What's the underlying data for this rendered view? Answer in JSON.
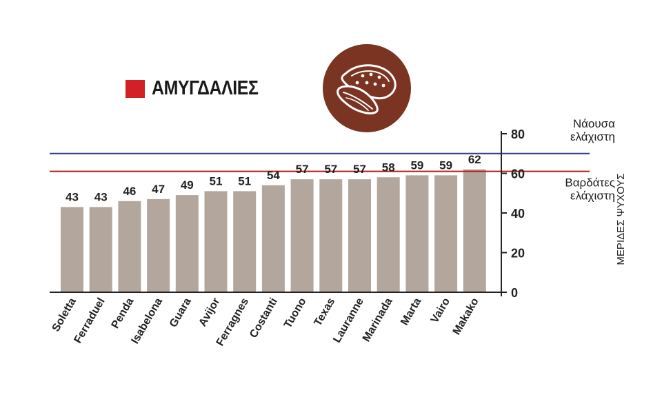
{
  "colors": {
    "bar": "#b3a69c",
    "accent_red": "#d32027",
    "line_blue": "#2e3b8e",
    "line_red": "#b01c1c",
    "icon_bg": "#7a3421",
    "axis": "#222222"
  },
  "header": {
    "title": "ΑΜΥΓΔΑΛΙΕΣ",
    "icon": "almond-icon"
  },
  "chart_data": {
    "type": "bar",
    "title": "ΑΜΥΓΔΑΛΙΕΣ",
    "categories": [
      "Soletta",
      "Ferraduel",
      "Penda",
      "Isabelona",
      "Guara",
      "Avijor",
      "Ferragnes",
      "Costanti",
      "Tuono",
      "Texas",
      "Lauranne",
      "Marinada",
      "Marta",
      "Vairo",
      "Makako"
    ],
    "values": [
      43,
      43,
      46,
      47,
      49,
      51,
      51,
      54,
      57,
      57,
      57,
      58,
      59,
      59,
      62
    ],
    "ylabel": "ΜΕΡΙΔΕΣ ΨΥΧΟΥΣ",
    "ylim": [
      0,
      80
    ],
    "yticks": [
      0,
      20,
      40,
      60,
      80
    ],
    "reference_lines": [
      {
        "label": "Νάουσα ελάχιστη",
        "value": 70,
        "color": "#2e3b8e"
      },
      {
        "label": "Βαρδάτες ελάχιστη",
        "value": 61,
        "color": "#b01c1c"
      }
    ],
    "grid": false,
    "legend": "none"
  }
}
